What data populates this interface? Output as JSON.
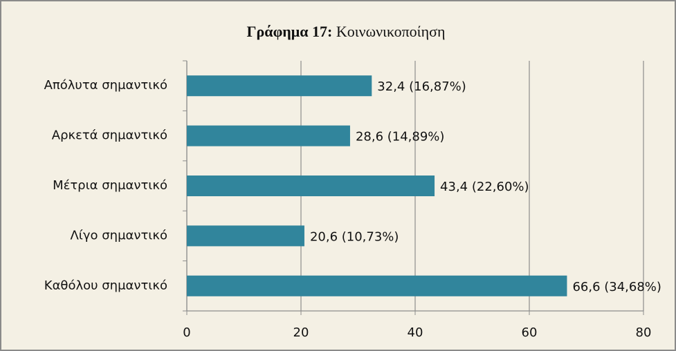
{
  "chart_data": {
    "type": "barh",
    "title": [
      "Γράφημα 17:",
      "Κοινωνικοποίηση"
    ],
    "categories": [
      "Απόλυτα σημαντικό",
      "Αρκετά σημαντικό",
      "Μέτρια σημαντικό",
      "Λίγο σημαντικό",
      "Καθόλου σημαντικό"
    ],
    "values": [
      32.4,
      28.6,
      43.4,
      20.6,
      66.6
    ],
    "value_labels": [
      "32,4 (16,87%)",
      "28,6 (14,89%)",
      "43,4 (22,60%)",
      "20,6 (10,73%)",
      "66,6 (34,68%)"
    ],
    "color": "#31859c",
    "xlim": [
      0,
      80
    ],
    "xticks": [
      0,
      20,
      40,
      60,
      80
    ],
    "grid": true
  }
}
